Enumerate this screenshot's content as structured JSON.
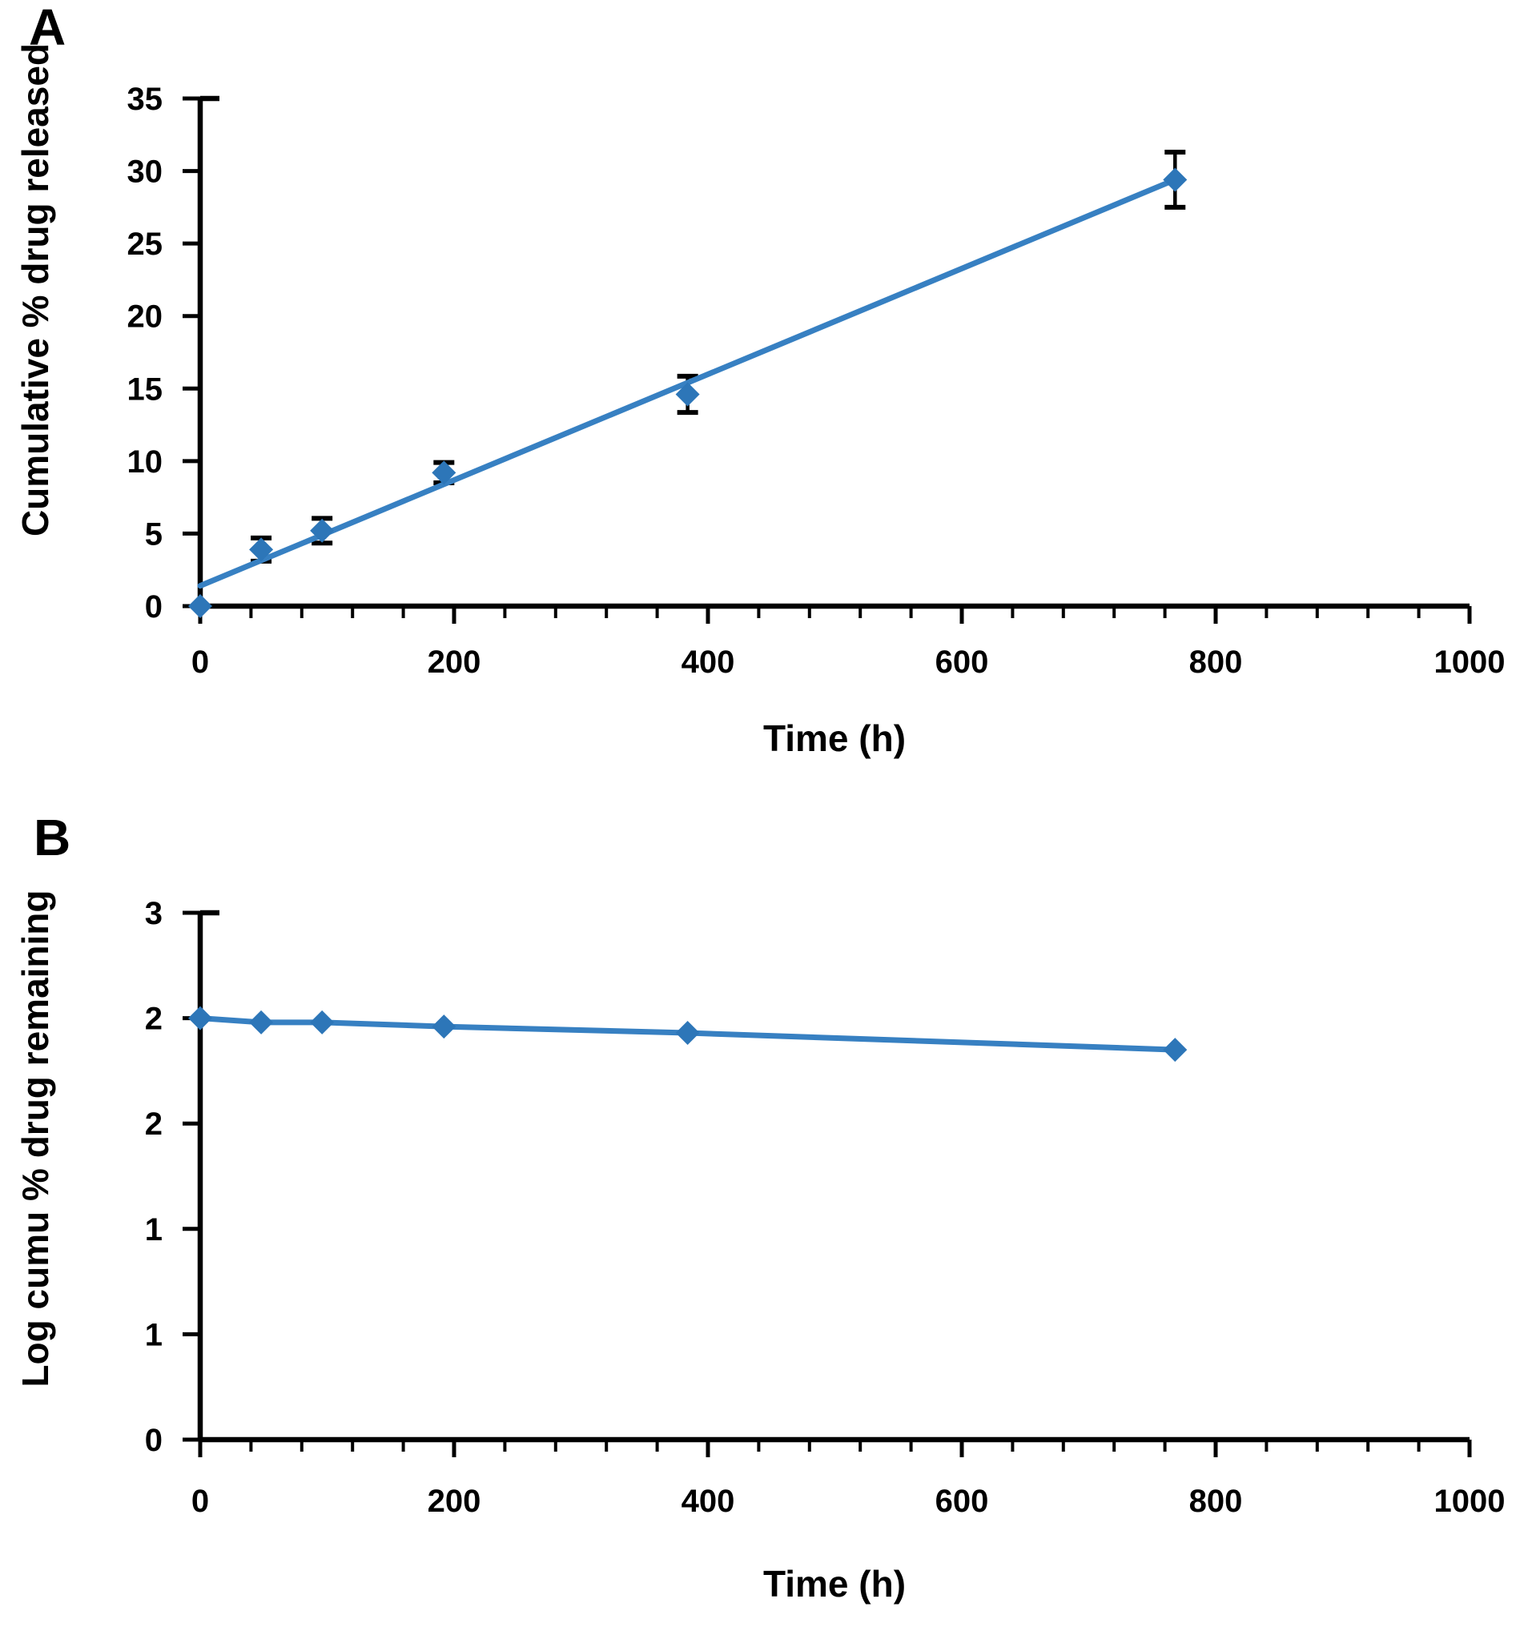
{
  "figure": {
    "background_color": "#FFFFFF",
    "colors": {
      "series_blue": "#2D76B8",
      "line_blue": "#3780C2",
      "axis_black": "#000000"
    }
  },
  "chart_data": [
    {
      "panel": "A",
      "type": "scatter",
      "xlabel": "Time (h)",
      "ylabel": "Cumulative % drug released",
      "x": [
        0,
        48,
        96,
        192,
        384,
        768
      ],
      "y": [
        0,
        3.9,
        5.2,
        9.2,
        14.6,
        29.4
      ],
      "y_error": [
        0,
        0.8,
        0.85,
        0.7,
        1.25,
        1.9
      ],
      "trendline": {
        "x": [
          0,
          768
        ],
        "y": [
          1.4,
          29.4
        ]
      },
      "xlim": [
        0,
        1000
      ],
      "ylim": [
        0,
        35
      ],
      "x_major_unit": 200,
      "x_minor_unit": 40,
      "y_major_unit": 5,
      "x_tick_labels": [
        "0",
        "200",
        "400",
        "600",
        "800",
        "1000"
      ],
      "y_tick_labels": [
        "0",
        "5",
        "10",
        "15",
        "20",
        "25",
        "30",
        "35"
      ],
      "marker": "diamond",
      "connect_points": false,
      "grid": false,
      "legend": "none"
    },
    {
      "panel": "B",
      "type": "line",
      "xlabel": "Time (h)",
      "ylabel": "Log cumu % drug remaining",
      "x": [
        0,
        48,
        96,
        192,
        384,
        768
      ],
      "y": [
        2.0,
        1.98,
        1.98,
        1.96,
        1.93,
        1.85
      ],
      "y_error": [
        0,
        0,
        0,
        0,
        0,
        0
      ],
      "xlim": [
        0,
        1000
      ],
      "ylim": [
        0,
        2.5
      ],
      "x_major_unit": 200,
      "x_minor_unit": 40,
      "y_major_unit": 0.5,
      "x_tick_labels": [
        "0",
        "200",
        "400",
        "600",
        "800",
        "1000"
      ],
      "y_tick_labels": [
        "0",
        "1",
        "1",
        "2",
        "2",
        "3"
      ],
      "marker": "diamond",
      "connect_points": true,
      "grid": false,
      "legend": "none"
    }
  ]
}
